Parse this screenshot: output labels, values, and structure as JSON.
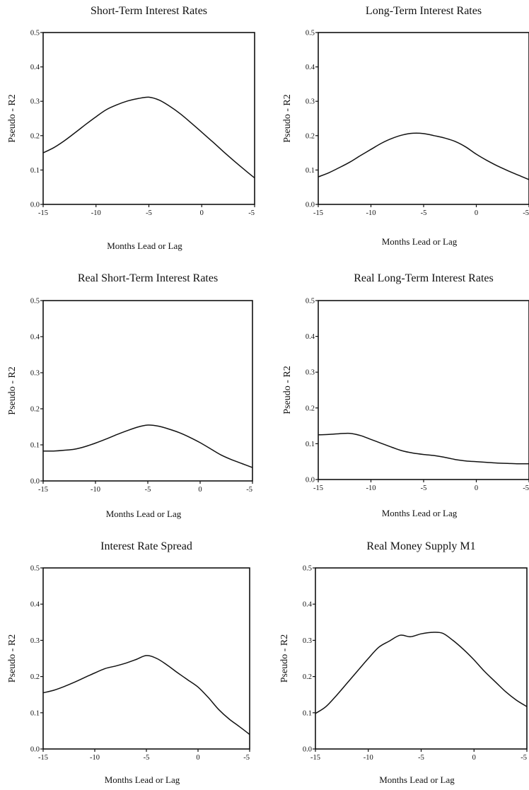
{
  "chart_data": [
    {
      "type": "line",
      "title": "Short-Term Interest Rates",
      "xlabel": "Months Lead or Lag",
      "ylabel": "Pseudo - R2",
      "xlim": [
        -15,
        5
      ],
      "ylim": [
        0.0,
        0.5
      ],
      "xticks": [
        "-15",
        "-10",
        "-5",
        "0",
        "-5"
      ],
      "yticks": [
        "0.0",
        "0.1",
        "0.2",
        "0.3",
        "0.4",
        "0.5"
      ],
      "grid": false,
      "x": [
        -15,
        -14,
        -13,
        -12,
        -11,
        -10,
        -9,
        -8,
        -7,
        -6,
        -5,
        -4,
        -3,
        -2,
        -1,
        0,
        1,
        2,
        3,
        4,
        5
      ],
      "values": [
        0.15,
        0.165,
        0.185,
        0.208,
        0.232,
        0.255,
        0.276,
        0.29,
        0.301,
        0.308,
        0.312,
        0.303,
        0.285,
        0.263,
        0.237,
        0.21,
        0.183,
        0.155,
        0.128,
        0.102,
        0.077
      ]
    },
    {
      "type": "line",
      "title": "Long-Term Interest Rates",
      "xlabel": "Months Lead or Lag",
      "ylabel": "Pseudo - R2",
      "xlim": [
        -15,
        5
      ],
      "ylim": [
        0.0,
        0.5
      ],
      "xticks": [
        "-15",
        "-10",
        "-5",
        "0",
        "-5"
      ],
      "yticks": [
        "0.0",
        "0.1",
        "0.2",
        "0.3",
        "0.4",
        "0.5"
      ],
      "grid": false,
      "x": [
        -15,
        -14,
        -13,
        -12,
        -11,
        -10,
        -9,
        -8,
        -7,
        -6,
        -5,
        -4,
        -3,
        -2,
        -1,
        0,
        1,
        2,
        3,
        4,
        5
      ],
      "values": [
        0.08,
        0.092,
        0.107,
        0.123,
        0.142,
        0.16,
        0.178,
        0.192,
        0.202,
        0.207,
        0.206,
        0.2,
        0.193,
        0.183,
        0.167,
        0.146,
        0.128,
        0.112,
        0.098,
        0.085,
        0.072
      ]
    },
    {
      "type": "line",
      "title": "Real Short-Term Interest Rates",
      "xlabel": "Months Lead or Lag",
      "ylabel": "Pseudo - R2",
      "xlim": [
        -15,
        5
      ],
      "ylim": [
        0.0,
        0.5
      ],
      "xticks": [
        "-15",
        "-10",
        "-5",
        "0",
        "-5"
      ],
      "yticks": [
        "0.0",
        "0.1",
        "0.2",
        "0.3",
        "0.4",
        "0.5"
      ],
      "grid": false,
      "x": [
        -15,
        -14,
        -13,
        -12,
        -11,
        -10,
        -9,
        -8,
        -7,
        -6,
        -5,
        -4,
        -3,
        -2,
        -1,
        0,
        1,
        2,
        3,
        4,
        5
      ],
      "values": [
        0.083,
        0.083,
        0.085,
        0.088,
        0.095,
        0.105,
        0.116,
        0.128,
        0.139,
        0.149,
        0.155,
        0.152,
        0.144,
        0.134,
        0.121,
        0.106,
        0.089,
        0.072,
        0.059,
        0.048,
        0.037
      ]
    },
    {
      "type": "line",
      "title": "Real Long-Term Interest Rates",
      "xlabel": "Months Lead or Lag",
      "ylabel": "Pseudo - R2",
      "xlim": [
        -15,
        5
      ],
      "ylim": [
        0.0,
        0.5
      ],
      "xticks": [
        "-15",
        "-10",
        "-5",
        "0",
        "-5"
      ],
      "yticks": [
        "0.0",
        "0.1",
        "0.2",
        "0.3",
        "0.4",
        "0.5"
      ],
      "grid": false,
      "x": [
        -15,
        -14,
        -13,
        -12,
        -11,
        -10,
        -9,
        -8,
        -7,
        -6,
        -5,
        -4,
        -3,
        -2,
        -1,
        0,
        1,
        2,
        3,
        4,
        5
      ],
      "values": [
        0.125,
        0.126,
        0.128,
        0.129,
        0.123,
        0.112,
        0.101,
        0.09,
        0.08,
        0.074,
        0.07,
        0.067,
        0.062,
        0.056,
        0.052,
        0.05,
        0.048,
        0.046,
        0.045,
        0.044,
        0.044
      ]
    },
    {
      "type": "line",
      "title": "Interest Rate Spread",
      "xlabel": "Months Lead or Lag",
      "ylabel": "Pseudo - R2",
      "xlim": [
        -15,
        5
      ],
      "ylim": [
        0.0,
        0.5
      ],
      "xticks": [
        "-15",
        "-10",
        "-5",
        "0",
        "-5"
      ],
      "yticks": [
        "0.0",
        "0.1",
        "0.2",
        "0.3",
        "0.4",
        "0.5"
      ],
      "grid": false,
      "x": [
        -15,
        -14,
        -13,
        -12,
        -11,
        -10,
        -9,
        -8,
        -7,
        -6,
        -5,
        -4,
        -3,
        -2,
        -1,
        0,
        1,
        2,
        3,
        4,
        5
      ],
      "values": [
        0.155,
        0.162,
        0.172,
        0.184,
        0.197,
        0.21,
        0.222,
        0.229,
        0.237,
        0.247,
        0.258,
        0.25,
        0.232,
        0.211,
        0.191,
        0.171,
        0.142,
        0.109,
        0.083,
        0.062,
        0.04
      ]
    },
    {
      "type": "line",
      "title": "Real Money Supply M1",
      "xlabel": "Months Lead or Lag",
      "ylabel": "Pseudo - R2",
      "xlim": [
        -15,
        5
      ],
      "ylim": [
        0.0,
        0.5
      ],
      "xticks": [
        "-15",
        "-10",
        "-5",
        "0",
        "-5"
      ],
      "yticks": [
        "0.0",
        "0.1",
        "0.2",
        "0.3",
        "0.4",
        "0.5"
      ],
      "grid": false,
      "x": [
        -15,
        -14,
        -13,
        -12,
        -11,
        -10,
        -9,
        -8,
        -7,
        -6,
        -5,
        -4,
        -3,
        -2,
        -1,
        0,
        1,
        2,
        3,
        4,
        5
      ],
      "values": [
        0.098,
        0.117,
        0.148,
        0.182,
        0.216,
        0.25,
        0.281,
        0.298,
        0.314,
        0.31,
        0.318,
        0.322,
        0.32,
        0.3,
        0.275,
        0.246,
        0.214,
        0.186,
        0.158,
        0.135,
        0.117
      ]
    }
  ]
}
